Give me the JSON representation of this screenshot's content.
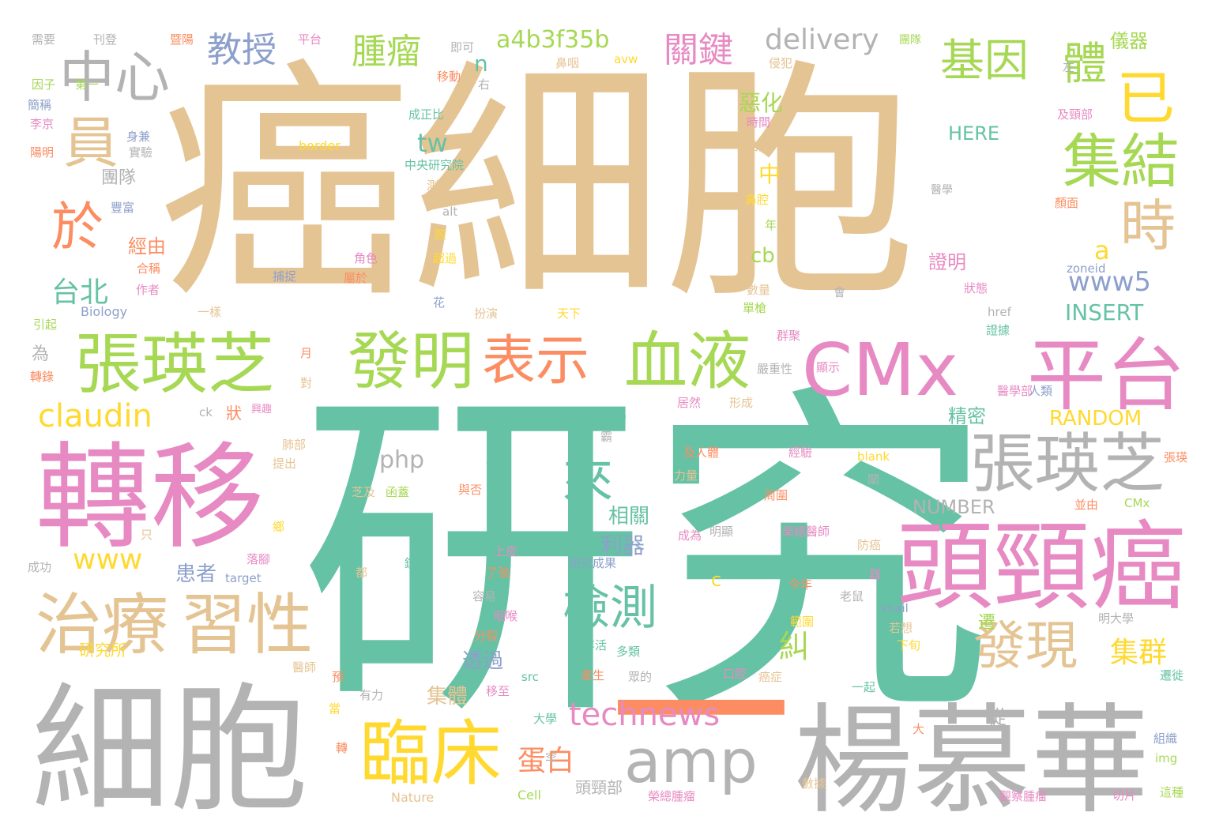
{
  "colors": {
    "tan": "#e5c494",
    "green": "#66c2a5",
    "pink": "#e78ac3",
    "gray": "#b3b3b3",
    "yellow": "#ffd92f",
    "lime": "#a6d854",
    "orange": "#fc8d62",
    "blue": "#8da0cb"
  },
  "words": [
    {
      "text": "癌細胞",
      "color": "tan"
    },
    {
      "text": "研究",
      "color": "green"
    },
    {
      "text": "細胞",
      "color": "gray"
    },
    {
      "text": "轉移",
      "color": "pink"
    },
    {
      "text": "楊慕華",
      "color": "gray"
    },
    {
      "text": "一",
      "color": "orange"
    },
    {
      "text": "頭頸癌",
      "color": "pink"
    },
    {
      "text": "CMx",
      "color": "pink"
    },
    {
      "text": "平台",
      "color": "pink"
    },
    {
      "text": "張瑛芝",
      "color": "lime"
    },
    {
      "text": "張瑛芝",
      "color": "gray"
    },
    {
      "text": "發明",
      "color": "lime"
    },
    {
      "text": "血液",
      "color": "lime"
    },
    {
      "text": "表示",
      "color": "orange"
    },
    {
      "text": "治療",
      "color": "tan"
    },
    {
      "text": "習性",
      "color": "tan"
    },
    {
      "text": "臨床",
      "color": "yellow"
    },
    {
      "text": "amp",
      "color": "gray"
    },
    {
      "text": "中心",
      "color": "gray"
    },
    {
      "text": "員",
      "color": "tan"
    },
    {
      "text": "於",
      "color": "orange"
    },
    {
      "text": "已",
      "color": "yellow"
    },
    {
      "text": "集結",
      "color": "lime"
    },
    {
      "text": "基因",
      "color": "lime"
    },
    {
      "text": "體",
      "color": "lime"
    },
    {
      "text": "時",
      "color": "tan"
    },
    {
      "text": "檢測",
      "color": "green"
    },
    {
      "text": "發現",
      "color": "tan"
    },
    {
      "text": "來",
      "color": "green"
    },
    {
      "text": "technews",
      "color": "pink"
    },
    {
      "text": "claudin",
      "color": "yellow"
    },
    {
      "text": "教授",
      "color": "blue"
    },
    {
      "text": "腫瘤",
      "color": "lime"
    },
    {
      "text": "關鍵",
      "color": "pink"
    },
    {
      "text": "delivery",
      "color": "gray"
    },
    {
      "text": "a4b3f35b",
      "color": "lime"
    },
    {
      "text": "台北",
      "color": "green"
    },
    {
      "text": "蛋白",
      "color": "orange"
    },
    {
      "text": "集群",
      "color": "yellow"
    },
    {
      "text": "www",
      "color": "yellow"
    },
    {
      "text": "php",
      "color": "gray"
    },
    {
      "text": "tw",
      "color": "green"
    },
    {
      "text": "www5",
      "color": "blue"
    },
    {
      "text": "a",
      "color": "yellow"
    },
    {
      "text": "cb",
      "color": "lime"
    },
    {
      "text": "INSERT",
      "color": "green"
    },
    {
      "text": "RANDOM",
      "color": "yellow"
    },
    {
      "text": "NUMBER",
      "color": "gray"
    },
    {
      "text": "HERE",
      "color": "green"
    },
    {
      "text": "糾",
      "color": "lime"
    },
    {
      "text": "患者",
      "color": "blue"
    },
    {
      "text": "利器",
      "color": "blue"
    },
    {
      "text": "相關",
      "color": "green"
    },
    {
      "text": "透過",
      "color": "blue"
    },
    {
      "text": "集體",
      "color": "tan"
    },
    {
      "text": "精密",
      "color": "green"
    },
    {
      "text": "證明",
      "color": "pink"
    },
    {
      "text": "惡化",
      "color": "lime"
    },
    {
      "text": "經由",
      "color": "orange"
    },
    {
      "text": "團隊",
      "color": "gray"
    },
    {
      "text": "n",
      "color": "green"
    },
    {
      "text": "研究所",
      "color": "yellow"
    },
    {
      "text": "頭頸部",
      "color": "gray"
    },
    {
      "text": "中",
      "color": "yellow"
    },
    {
      "text": "狀",
      "color": "orange"
    },
    {
      "text": "為",
      "color": "gray"
    },
    {
      "text": "從",
      "color": "gray"
    },
    {
      "text": "遷",
      "color": "lime"
    },
    {
      "text": "c",
      "color": "yellow"
    },
    {
      "text": "儀器",
      "color": "lime"
    },
    {
      "text": "需要",
      "color": "gray"
    },
    {
      "text": "刊登",
      "color": "gray"
    },
    {
      "text": "暨陽",
      "color": "orange"
    },
    {
      "text": "平台",
      "color": "pink"
    },
    {
      "text": "即可",
      "color": "gray"
    },
    {
      "text": "鼻咽",
      "color": "tan"
    },
    {
      "text": "avw",
      "color": "yellow"
    },
    {
      "text": "侵犯",
      "color": "tan"
    },
    {
      "text": "左",
      "color": "gray"
    },
    {
      "text": "團隊",
      "color": "lime"
    },
    {
      "text": "因子",
      "color": "lime"
    },
    {
      "text": "第一",
      "color": "lime"
    },
    {
      "text": "移動",
      "color": "orange"
    },
    {
      "text": "右",
      "color": "gray"
    },
    {
      "text": "簡稱",
      "color": "blue"
    },
    {
      "text": "李京",
      "color": "pink"
    },
    {
      "text": "成正比",
      "color": "green"
    },
    {
      "text": "時間",
      "color": "pink"
    },
    {
      "text": "及頸部",
      "color": "pink"
    },
    {
      "text": "身兼",
      "color": "blue"
    },
    {
      "text": "陽明",
      "color": "orange"
    },
    {
      "text": "實驗",
      "color": "gray"
    },
    {
      "text": "border",
      "color": "yellow"
    },
    {
      "text": "結隊",
      "color": "tan"
    },
    {
      "text": "中央研究院",
      "color": "green"
    },
    {
      "text": "測出",
      "color": "tan"
    },
    {
      "text": "醫學",
      "color": "gray"
    },
    {
      "text": "豐富",
      "color": "blue"
    },
    {
      "text": "鼻腔",
      "color": "yellow"
    },
    {
      "text": "顏面",
      "color": "orange"
    },
    {
      "text": "alt",
      "color": "gray"
    },
    {
      "text": "腔",
      "color": "yellow"
    },
    {
      "text": "年",
      "color": "lime"
    },
    {
      "text": "超過",
      "color": "yellow"
    },
    {
      "text": "角色",
      "color": "pink"
    },
    {
      "text": "合稱",
      "color": "orange"
    },
    {
      "text": "捕捉",
      "color": "blue"
    },
    {
      "text": "屬於",
      "color": "orange"
    },
    {
      "text": "zoneid",
      "color": "blue"
    },
    {
      "text": "狀態",
      "color": "pink"
    },
    {
      "text": "作者",
      "color": "pink"
    },
    {
      "text": "數量",
      "color": "tan"
    },
    {
      "text": "會",
      "color": "gray"
    },
    {
      "text": "一樣",
      "color": "tan"
    },
    {
      "text": "花",
      "color": "blue"
    },
    {
      "text": "扮演",
      "color": "tan"
    },
    {
      "text": "天下",
      "color": "yellow"
    },
    {
      "text": "單槍",
      "color": "lime"
    },
    {
      "text": "引起",
      "color": "lime"
    },
    {
      "text": "Biology",
      "color": "blue"
    },
    {
      "text": "href",
      "color": "gray"
    },
    {
      "text": "證據",
      "color": "green"
    },
    {
      "text": "群聚",
      "color": "pink"
    },
    {
      "text": "月",
      "color": "orange"
    },
    {
      "text": "嚴重性",
      "color": "gray"
    },
    {
      "text": "顯示",
      "color": "pink"
    },
    {
      "text": "轉錄",
      "color": "orange"
    },
    {
      "text": "對",
      "color": "tan"
    },
    {
      "text": "ck",
      "color": "gray"
    },
    {
      "text": "興趣",
      "color": "pink"
    },
    {
      "text": "匹馬",
      "color": "green"
    },
    {
      "text": "居然",
      "color": "pink"
    },
    {
      "text": "形成",
      "color": "tan"
    },
    {
      "text": "醫學部",
      "color": "pink"
    },
    {
      "text": "人類",
      "color": "blue"
    },
    {
      "text": "肺部",
      "color": "tan"
    },
    {
      "text": "霸",
      "color": "gray"
    },
    {
      "text": "提出",
      "color": "tan"
    },
    {
      "text": "成群",
      "color": "green"
    },
    {
      "text": "及人體",
      "color": "orange"
    },
    {
      "text": "經驗",
      "color": "pink"
    },
    {
      "text": "blank",
      "color": "yellow"
    },
    {
      "text": "張瑛",
      "color": "orange"
    },
    {
      "text": "芝及",
      "color": "tan"
    },
    {
      "text": "函蓋",
      "color": "lime"
    },
    {
      "text": "與否",
      "color": "orange"
    },
    {
      "text": "力量",
      "color": "tan"
    },
    {
      "text": "周圍",
      "color": "orange"
    },
    {
      "text": "闡",
      "color": "gray"
    },
    {
      "text": "並由",
      "color": "orange"
    },
    {
      "text": "CMx",
      "color": "lime"
    },
    {
      "text": "鄉",
      "color": "yellow"
    },
    {
      "text": "只",
      "color": "tan"
    },
    {
      "text": "成功",
      "color": "gray"
    },
    {
      "text": "落腳",
      "color": "pink"
    },
    {
      "text": "鑽研",
      "color": "green"
    },
    {
      "text": "上皮",
      "color": "pink"
    },
    {
      "text": "成為",
      "color": "pink"
    },
    {
      "text": "明顯",
      "color": "gray"
    },
    {
      "text": "榮總醫師",
      "color": "pink"
    },
    {
      "text": "防癌",
      "color": "tan"
    },
    {
      "text": "target",
      "color": "blue"
    },
    {
      "text": "都",
      "color": "tan"
    },
    {
      "text": "了強",
      "color": "orange"
    },
    {
      "text": "研究成果",
      "color": "blue"
    },
    {
      "text": "器",
      "color": "pink"
    },
    {
      "text": "今年",
      "color": "orange"
    },
    {
      "text": "容易",
      "color": "gray"
    },
    {
      "text": "老鼠",
      "color": "gray"
    },
    {
      "text": "咽喉",
      "color": "pink"
    },
    {
      "text": "範圍",
      "color": "yellow"
    },
    {
      "text": "snail",
      "color": "blue"
    },
    {
      "text": "若想",
      "color": "tan"
    },
    {
      "text": "明大學",
      "color": "gray"
    },
    {
      "text": "分裂",
      "color": "orange"
    },
    {
      "text": "存活",
      "color": "green"
    },
    {
      "text": "多類",
      "color": "green"
    },
    {
      "text": "下旬",
      "color": "yellow"
    },
    {
      "text": "醫師",
      "color": "tan"
    },
    {
      "text": "預",
      "color": "orange"
    },
    {
      "text": "src",
      "color": "green"
    },
    {
      "text": "產生",
      "color": "orange"
    },
    {
      "text": "眾的",
      "color": "gray"
    },
    {
      "text": "口腔",
      "color": "pink"
    },
    {
      "text": "癌症",
      "color": "tan"
    },
    {
      "text": "有力",
      "color": "gray"
    },
    {
      "text": "移至",
      "color": "pink"
    },
    {
      "text": "一起",
      "color": "green"
    },
    {
      "text": "遷徙",
      "color": "green"
    },
    {
      "text": "當",
      "color": "yellow"
    },
    {
      "text": "大學",
      "color": "green"
    },
    {
      "text": "大",
      "color": "orange"
    },
    {
      "text": "組織",
      "color": "blue"
    },
    {
      "text": "轉",
      "color": "orange"
    },
    {
      "text": "img",
      "color": "lime"
    },
    {
      "text": "罕",
      "color": "gray"
    },
    {
      "text": "數據",
      "color": "tan"
    },
    {
      "text": "Nature",
      "color": "tan"
    },
    {
      "text": "Cell",
      "color": "lime"
    },
    {
      "text": "榮總腫瘤",
      "color": "pink"
    },
    {
      "text": "觀察腫瘤",
      "color": "pink"
    },
    {
      "text": "切片",
      "color": "pink"
    },
    {
      "text": "這種",
      "color": "lime"
    }
  ]
}
